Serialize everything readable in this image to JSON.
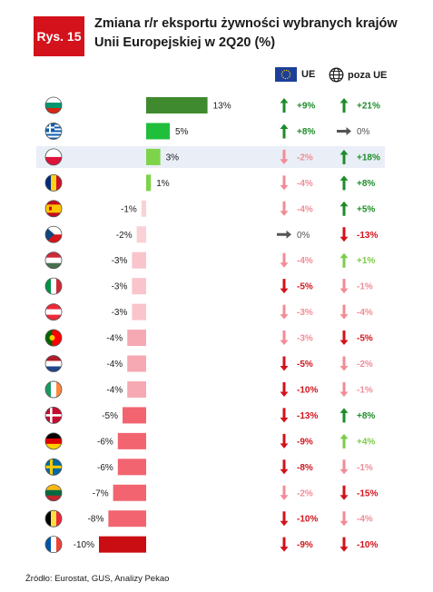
{
  "badge": "Rys. 15",
  "title": "Zmiana r/r eksportu żywności wybranych krajów Unii Europejskiej w 2Q20 (%)",
  "legend": {
    "eu_label": "UE",
    "world_label": "poza UE",
    "eu_icon": "eu-flag-icon",
    "world_icon": "globe-icon"
  },
  "source": "Źródło: Eurostat, GUS, Analizy Pekao",
  "colors": {
    "arrow_up_strong": "#1e8c2a",
    "arrow_up_light": "#7ccc4a",
    "arrow_down_strong": "#d3121b",
    "arrow_down_light": "#f28c96",
    "arrow_flat": "#555555",
    "highlight_row": "#e9eef7"
  },
  "chart_data": {
    "type": "bar",
    "orientation": "horizontal",
    "xlim": [
      -10,
      13
    ],
    "categories": [
      "Bulgaria",
      "Greece",
      "Poland",
      "Romania",
      "Spain",
      "Czech Republic",
      "Hungary",
      "Italy",
      "Austria",
      "Portugal",
      "Netherlands",
      "Ireland",
      "Denmark",
      "Germany",
      "Sweden",
      "Lithuania",
      "Belgium",
      "France"
    ],
    "flags": [
      "bg",
      "gr",
      "pl",
      "ro",
      "es",
      "cz",
      "hu",
      "it",
      "at",
      "pt",
      "nl",
      "ie",
      "dk",
      "de",
      "se",
      "lt",
      "be",
      "fr"
    ],
    "values": [
      13,
      5,
      3,
      1,
      -1,
      -2,
      -3,
      -3,
      -3,
      -4,
      -4,
      -4,
      -5,
      -6,
      -6,
      -7,
      -8,
      -10
    ],
    "value_labels": [
      "13%",
      "5%",
      "3%",
      "1%",
      "-1%",
      "-2%",
      "-3%",
      "-3%",
      "-3%",
      "-4%",
      "-4%",
      "-4%",
      "-5%",
      "-6%",
      "-6%",
      "-7%",
      "-8%",
      "-10%"
    ],
    "bar_colors": [
      "#3f8a2e",
      "#1fbf3c",
      "#7dd34a",
      "#7dd34a",
      "#f9d1d6",
      "#f9d1d6",
      "#f9c4cb",
      "#f9c4cb",
      "#f9c4cb",
      "#f6a9b3",
      "#f6a9b3",
      "#f6a9b3",
      "#f2646f",
      "#f2646f",
      "#f2646f",
      "#f2646f",
      "#f2646f",
      "#c90d12"
    ],
    "highlight_index": 2,
    "eu_change": [
      "+9%",
      "+8%",
      "-2%",
      "-4%",
      "-4%",
      "0%",
      "-4%",
      "-5%",
      "-3%",
      "-3%",
      "-5%",
      "-10%",
      "-13%",
      "-9%",
      "-8%",
      "-2%",
      "-10%",
      "-9%"
    ],
    "eu_arrow": [
      "up",
      "up",
      "down-light",
      "down-light",
      "down-light",
      "flat",
      "down-light",
      "down",
      "down-light",
      "down-light",
      "down",
      "down",
      "down",
      "down",
      "down",
      "down-light",
      "down",
      "down"
    ],
    "non_eu_change": [
      "+21%",
      "0%",
      "+18%",
      "+8%",
      "+5%",
      "-13%",
      "+1%",
      "-1%",
      "-4%",
      "-5%",
      "-2%",
      "-1%",
      "+8%",
      "+4%",
      "-1%",
      "-15%",
      "-4%",
      "-10%"
    ],
    "non_eu_arrow": [
      "up",
      "flat",
      "up",
      "up",
      "up",
      "down",
      "up-light",
      "down-light",
      "down-light",
      "down",
      "down-light",
      "down-light",
      "up",
      "up-light",
      "down-light",
      "down",
      "down-light",
      "down"
    ]
  }
}
